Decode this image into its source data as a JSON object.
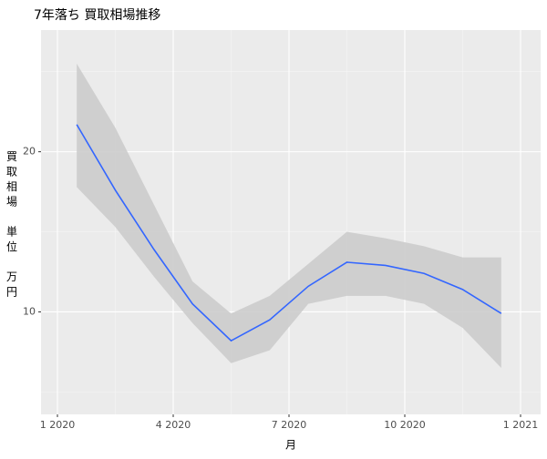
{
  "chart_data": {
    "type": "line",
    "title": "7年落ち 買取相場推移",
    "xlabel": "月",
    "ylabel": "買取相場 単位 万円",
    "x": [
      "2020-01",
      "2020-02",
      "2020-03",
      "2020-04",
      "2020-05",
      "2020-06",
      "2020-07",
      "2020-08",
      "2020-09",
      "2020-10",
      "2020-11",
      "2020-12"
    ],
    "series": [
      {
        "color": "#3366ff",
        "band_color": "#cccccc",
        "values": [
          21.7,
          17.6,
          13.9,
          10.5,
          8.2,
          9.5,
          11.6,
          13.1,
          12.9,
          12.4,
          11.4,
          9.9
        ],
        "upper": [
          25.5,
          21.5,
          16.7,
          11.9,
          9.9,
          11.0,
          13.0,
          15.0,
          14.6,
          14.1,
          13.4,
          13.4
        ],
        "lower": [
          17.8,
          15.3,
          12.2,
          9.3,
          6.8,
          7.6,
          10.5,
          11.0,
          11.0,
          10.5,
          9.0,
          6.5
        ]
      }
    ],
    "ylim": [
      3.6,
      27.6
    ],
    "yticks": [
      10,
      20
    ],
    "xticks": [
      {
        "value": "2020-01",
        "label": "1 2020"
      },
      {
        "value": "2020-04",
        "label": "4 2020"
      },
      {
        "value": "2020-07",
        "label": "7 2020"
      },
      {
        "value": "2020-10",
        "label": "10 2020"
      },
      {
        "value": "2021-01",
        "label": "1 2021"
      }
    ],
    "grid": true
  }
}
